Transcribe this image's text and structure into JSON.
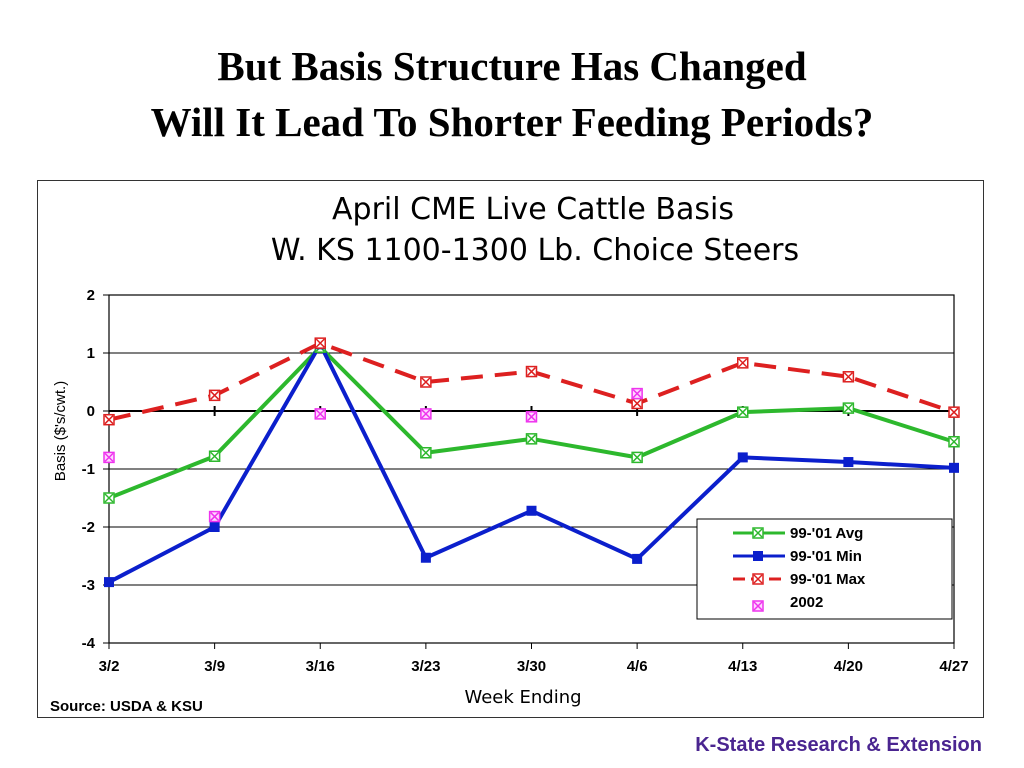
{
  "slide": {
    "title_line1": "But Basis Structure Has Changed",
    "title_line2": "Will It Lead To Shorter Feeding Periods?",
    "footer": "K-State Research & Extension"
  },
  "colors": {
    "avg": "#2db82d",
    "min": "#0b1fcc",
    "max": "#dd2020",
    "y2002": "#ee33ee",
    "footer": "#4a2590"
  },
  "chart_data": {
    "type": "line",
    "title": "April CME Live Cattle Basis",
    "subtitle": "W. KS 1100-1300 Lb. Choice Steers",
    "xlabel": "Week Ending",
    "ylabel": "Basis ($'s/cwt.)",
    "source": "Source:  USDA & KSU",
    "categories": [
      "3/2",
      "3/9",
      "3/16",
      "3/23",
      "3/30",
      "4/6",
      "4/13",
      "4/20",
      "4/27"
    ],
    "ylim": [
      -4,
      2
    ],
    "yticks": [
      "2",
      "1",
      "0",
      "-1",
      "-2",
      "-3",
      "-4"
    ],
    "grid": true,
    "legend_position": "bottom-right",
    "series": [
      {
        "name": "99-'01 Avg",
        "values": [
          -1.5,
          -0.78,
          1.1,
          -0.72,
          -0.48,
          -0.8,
          -0.02,
          0.05,
          -0.53
        ],
        "style": "solid",
        "marker": "x-square"
      },
      {
        "name": "99-'01 Min",
        "values": [
          -2.95,
          -2.0,
          1.15,
          -2.53,
          -1.72,
          -2.55,
          -0.8,
          -0.88,
          -0.98
        ],
        "style": "solid",
        "marker": "square"
      },
      {
        "name": "99-'01 Max",
        "values": [
          -0.15,
          0.27,
          1.17,
          0.5,
          0.68,
          0.13,
          0.83,
          0.59,
          -0.02
        ],
        "style": "dashed",
        "marker": "x-square"
      },
      {
        "name": "2002",
        "values": [
          -0.8,
          -1.82,
          -0.05,
          -0.05,
          -0.1,
          0.3,
          null,
          null,
          null
        ],
        "style": "none",
        "marker": "x-square"
      }
    ]
  }
}
